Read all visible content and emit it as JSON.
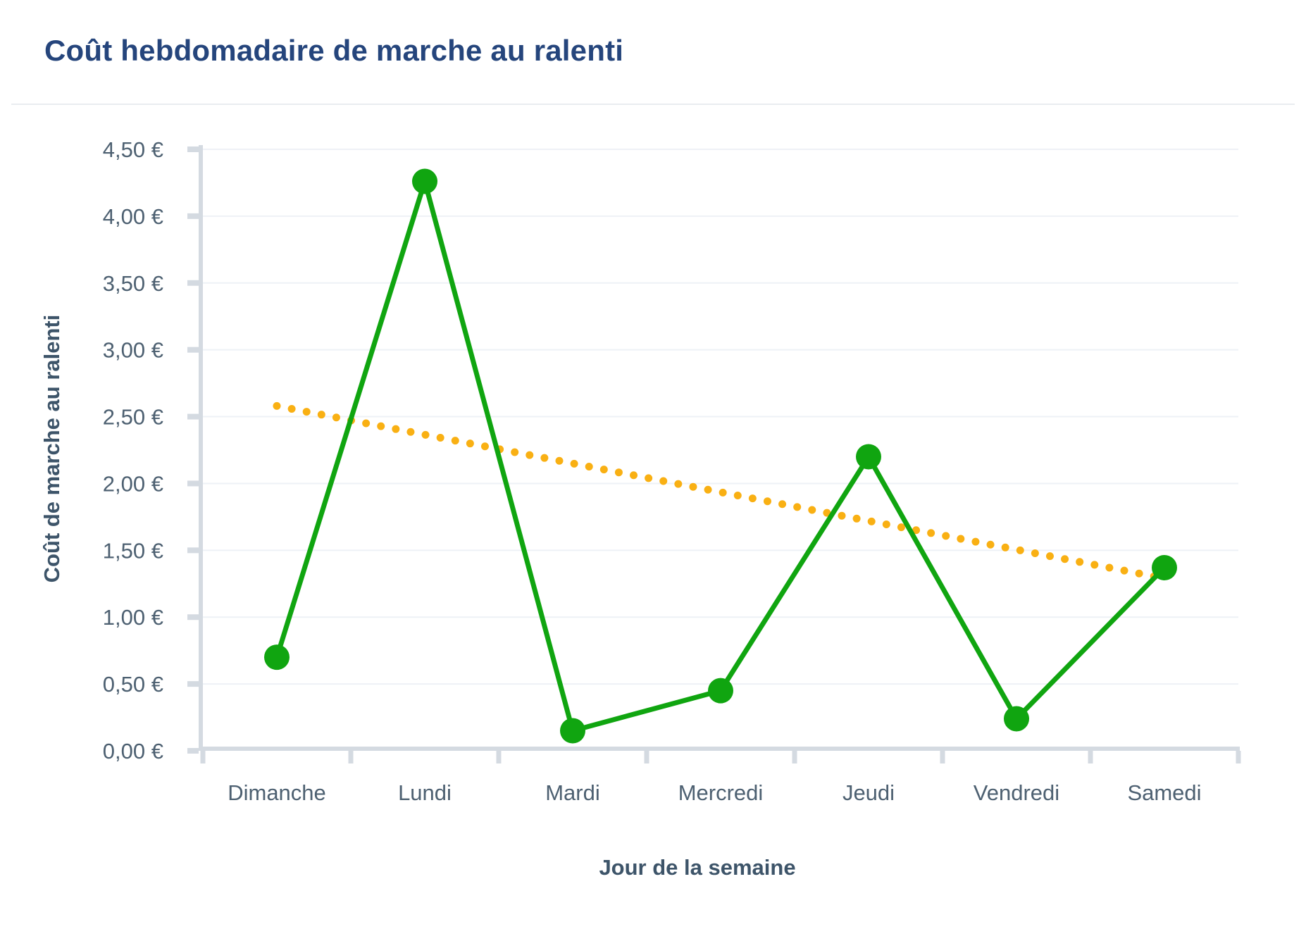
{
  "page": {
    "title": "Coût hebdomadaire de marche au ralenti"
  },
  "chart_data": {
    "type": "line",
    "title": "Coût hebdomadaire de marche au ralenti",
    "xlabel": "Jour de la semaine",
    "ylabel": "Coût de marche au ralenti",
    "categories": [
      "Dimanche",
      "Lundi",
      "Mardi",
      "Mercredi",
      "Jeudi",
      "Vendredi",
      "Samedi"
    ],
    "series": [
      {
        "id": "daily-idle-cost-line",
        "style": "solid-line-with-markers",
        "color": "#10A510",
        "values": [
          0.7,
          4.26,
          0.15,
          0.45,
          2.2,
          0.24,
          1.37
        ]
      },
      {
        "id": "trend-dotted-line",
        "style": "dotted-straight-line",
        "color": "#F9B013",
        "values": [
          2.58,
          2.365,
          2.15,
          1.935,
          1.72,
          1.505,
          1.29
        ]
      }
    ],
    "ylim": [
      0,
      4.5
    ],
    "ytick_step": 0.5,
    "ytick_labels": [
      "0,00 €",
      "0,50 €",
      "1,00 €",
      "1,50 €",
      "2,00 €",
      "2,50 €",
      "3,00 €",
      "3,50 €",
      "4,00 €",
      "4,50 €"
    ],
    "grid": true,
    "legend": false
  },
  "colors": {
    "title": "#25457C",
    "axis_title": "#3D5469",
    "tick_label": "#4D6071",
    "axis_line": "#D4DAE1",
    "gridline": "#EEF1F6",
    "divider": "#E9EDF0",
    "background": "#FFFFFF"
  }
}
